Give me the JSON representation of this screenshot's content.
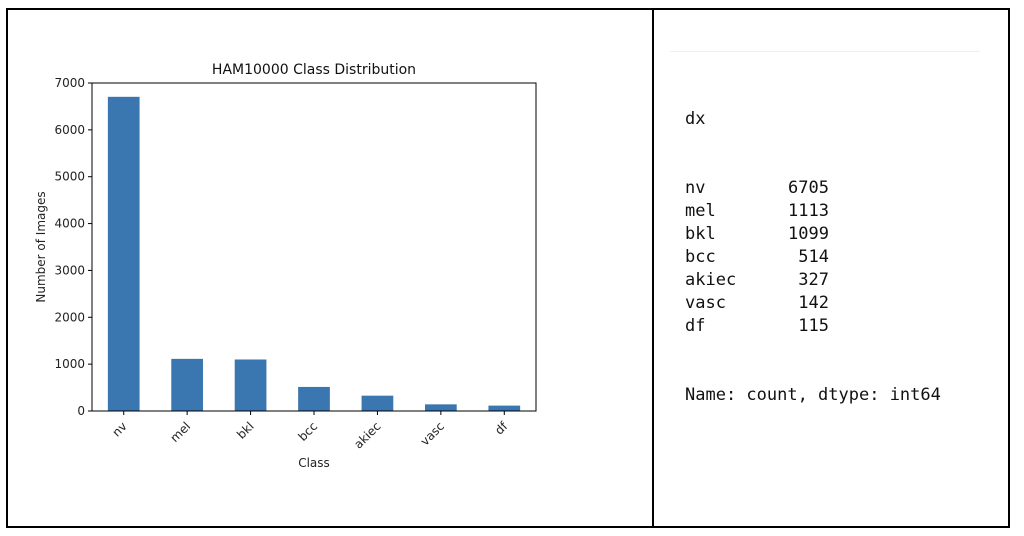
{
  "chart_data": {
    "type": "bar",
    "title": "HAM10000 Class Distribution",
    "xlabel": "Class",
    "ylabel": "Number of Images",
    "categories": [
      "nv",
      "mel",
      "bkl",
      "bcc",
      "akiec",
      "vasc",
      "df"
    ],
    "values": [
      6705,
      1113,
      1099,
      514,
      327,
      142,
      115
    ],
    "ylim": [
      0,
      7000
    ],
    "yticks": [
      0,
      1000,
      2000,
      3000,
      4000,
      5000,
      6000,
      7000
    ],
    "bar_color": "#3a76af",
    "grid": false,
    "legend": "none"
  },
  "output": {
    "index_name": "dx",
    "rows": [
      {
        "label": "nv",
        "value": "6705"
      },
      {
        "label": "mel",
        "value": "1113"
      },
      {
        "label": "bkl",
        "value": "1099"
      },
      {
        "label": "bcc",
        "value": "514"
      },
      {
        "label": "akiec",
        "value": "327"
      },
      {
        "label": "vasc",
        "value": "142"
      },
      {
        "label": "df",
        "value": "115"
      }
    ],
    "footer": "Name: count, dtype: int64"
  }
}
